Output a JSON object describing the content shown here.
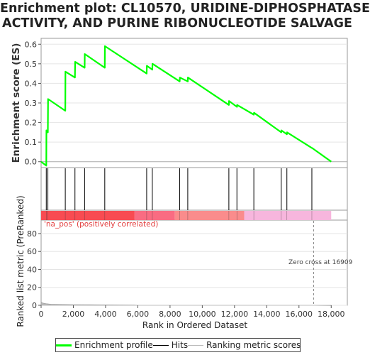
{
  "title_lines": [
    "Enrichment plot: CL10570, URIDINE-DIPHOSPHATASE",
    "ACTIVITY, AND PURINE RIBONUCLEOTIDE SALVAGE"
  ],
  "chart_data": [
    {
      "type": "line",
      "panel": "enrichment",
      "ylabel": "Enrichment score (ES)",
      "ylim": [
        -0.03,
        0.63
      ],
      "yticks": [
        "0.0",
        "0.1",
        "0.2",
        "0.3",
        "0.4",
        "0.5",
        "0.6"
      ],
      "xlim": [
        0,
        19000
      ],
      "series": [
        {
          "name": "Enrichment profile",
          "color": "#00ff00",
          "x": [
            0,
            320,
            330,
            420,
            430,
            1500,
            1510,
            2100,
            2110,
            2700,
            2710,
            3950,
            3960,
            6550,
            6560,
            6900,
            6910,
            8600,
            8610,
            9100,
            9110,
            11650,
            11660,
            12150,
            12160,
            13200,
            13210,
            14900,
            14910,
            15250,
            15260,
            16800,
            16810,
            18000
          ],
          "y": [
            0.0,
            -0.02,
            0.16,
            0.15,
            0.32,
            0.26,
            0.46,
            0.43,
            0.51,
            0.48,
            0.55,
            0.48,
            0.59,
            0.45,
            0.49,
            0.47,
            0.5,
            0.41,
            0.43,
            0.41,
            0.43,
            0.29,
            0.31,
            0.28,
            0.29,
            0.24,
            0.25,
            0.15,
            0.16,
            0.14,
            0.15,
            0.07,
            0.07,
            0.0
          ]
        }
      ]
    },
    {
      "type": "hits",
      "panel": "hits",
      "name": "Hits",
      "color": "#000000",
      "positions": [
        320,
        420,
        1500,
        2100,
        2700,
        3950,
        6550,
        6900,
        8600,
        9100,
        11650,
        12150,
        13200,
        14900,
        15250,
        16800
      ]
    },
    {
      "type": "heatmap",
      "panel": "rank_bar",
      "segments": [
        {
          "from": 0,
          "to": 5800,
          "color": "#f84b52"
        },
        {
          "from": 5800,
          "to": 8300,
          "color": "#f96c82"
        },
        {
          "from": 8300,
          "to": 12600,
          "color": "#fa8c8c"
        },
        {
          "from": 12600,
          "to": 18000,
          "color": "#f7b6dd"
        }
      ]
    },
    {
      "type": "area",
      "panel": "ranked_metric",
      "name": "Ranking metric scores",
      "color": "#bbbbbb",
      "ylabel": "Ranked list metric (PreRanked)",
      "xlabel": "Rank in Ordered Dataset",
      "ylim": [
        0,
        95
      ],
      "yticks": [
        "0",
        "20",
        "40",
        "60",
        "80"
      ],
      "xlim": [
        0,
        19000
      ],
      "xticks": [
        "0",
        "2,000",
        "4,000",
        "6,000",
        "8,000",
        "10,000",
        "12,000",
        "14,000",
        "16,000",
        "18,000"
      ],
      "x": [
        0,
        100,
        300,
        600,
        1000,
        2000,
        4000,
        5800,
        6000,
        16909,
        18000
      ],
      "y": [
        3.5,
        2.5,
        1.8,
        1.3,
        1.0,
        0.8,
        0.5,
        0.2,
        0.0,
        0.0,
        -0.2
      ],
      "annotations": {
        "positive_label": "'na_pos' (positively correlated)",
        "zero_cross_label": "Zero cross at 16909",
        "zero_cross_x": 16909
      }
    }
  ],
  "legend": [
    {
      "label": "Enrichment profile",
      "color": "#00ff00"
    },
    {
      "label": "Hits",
      "color": "#000000"
    },
    {
      "label": "Ranking metric scores",
      "color": "#bbbbbb"
    }
  ]
}
